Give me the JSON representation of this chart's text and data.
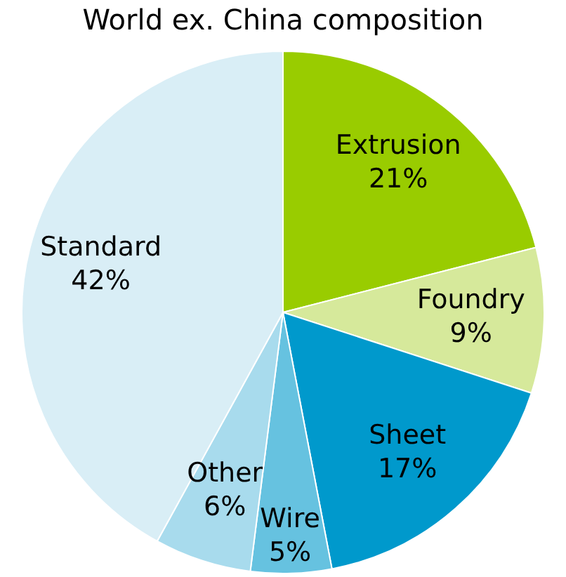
{
  "chart_data": {
    "type": "pie",
    "title": "World ex. China composition",
    "categories": [
      "Extrusion",
      "Foundry",
      "Sheet",
      "Wire",
      "Other",
      "Standard"
    ],
    "values": [
      21,
      9,
      17,
      5,
      6,
      42
    ],
    "value_labels": [
      "21%",
      "9%",
      "17%",
      "5%",
      "6%",
      "42%"
    ],
    "colors": [
      "#99cc00",
      "#d6e99b",
      "#0099cc",
      "#66c2e0",
      "#a8dbed",
      "#d9eef6"
    ],
    "legend": false
  }
}
